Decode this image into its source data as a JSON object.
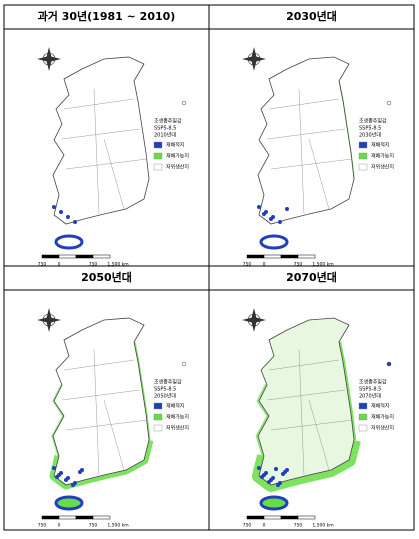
{
  "panels": [
    {
      "title": "과거 30년(1981 ~ 2010)",
      "legend": {
        "crop": "조생종주밀감",
        "scenario": "SSP5-8.5",
        "period": "2010년대",
        "items": [
          {
            "name": "재배적지",
            "color": "#1f3fbf"
          },
          {
            "name": "재배가능지",
            "color": "#66dd44"
          },
          {
            "name": "저위생산지",
            "color": "#ffffff"
          }
        ]
      },
      "scale": [
        "750",
        "0",
        "750",
        "1,500 km"
      ]
    },
    {
      "title": "2030년대",
      "legend": {
        "crop": "조생종주밀감",
        "scenario": "SSP5-8.5",
        "period": "2030년대",
        "items": [
          {
            "name": "재배적지",
            "color": "#1f3fbf"
          },
          {
            "name": "재배가능지",
            "color": "#66dd44"
          },
          {
            "name": "저위생산지",
            "color": "#ffffff"
          }
        ]
      },
      "scale": [
        "750",
        "0",
        "750",
        "1,500 km"
      ]
    },
    {
      "title": "2050년대",
      "legend": {
        "crop": "조생종주밀감",
        "scenario": "SSP5-8.5",
        "period": "2050년대",
        "items": [
          {
            "name": "재배적지",
            "color": "#1f3fbf"
          },
          {
            "name": "재배가능지",
            "color": "#66dd44"
          },
          {
            "name": "저위생산지",
            "color": "#ffffff"
          }
        ]
      },
      "scale": [
        "750",
        "0",
        "750",
        "1,500 km"
      ]
    },
    {
      "title": "2070년대",
      "legend": {
        "crop": "조생종주밀감",
        "scenario": "SSP5-8.5",
        "period": "2070년대",
        "items": [
          {
            "name": "재배적지",
            "color": "#1f3fbf"
          },
          {
            "name": "재배가능지",
            "color": "#66dd44"
          },
          {
            "name": "저위생산지",
            "color": "#ffffff"
          }
        ]
      },
      "scale": [
        "750",
        "0",
        "750",
        "1,500 km"
      ]
    }
  ]
}
